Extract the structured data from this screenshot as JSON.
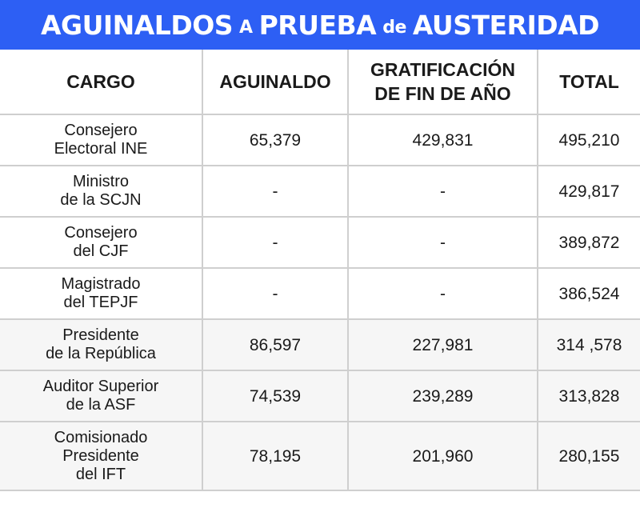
{
  "title": {
    "w1": "AGUINALDOS",
    "w2": "A",
    "w3": "PRUEBA",
    "w4": "de",
    "w5": "AUSTERIDAD"
  },
  "chart_data": {
    "type": "table",
    "title": "AGUINALDOS A PRUEBA de AUSTERIDAD",
    "columns": [
      "CARGO",
      "AGUINALDO",
      "GRATIFICACIÓN\nDE FIN DE AÑO",
      "TOTAL"
    ],
    "rows": [
      [
        "Consejero\nElectoral INE",
        "65,379",
        "429,831",
        "495,210"
      ],
      [
        "Ministro\nde la SCJN",
        "-",
        "-",
        "429,817"
      ],
      [
        "Consejero\ndel CJF",
        "-",
        "-",
        "389,872"
      ],
      [
        "Magistrado\ndel TEPJF",
        "-",
        "-",
        "386,524"
      ],
      [
        "Presidente\nde la República",
        "86,597",
        "227,981",
        "314 ,578"
      ],
      [
        "Auditor Superior\nde la ASF",
        "74,539",
        "239,289",
        "313,828"
      ],
      [
        "Comisionado\nPresidente\ndel IFT",
        "78,195",
        "201,960",
        "280,155"
      ]
    ]
  }
}
